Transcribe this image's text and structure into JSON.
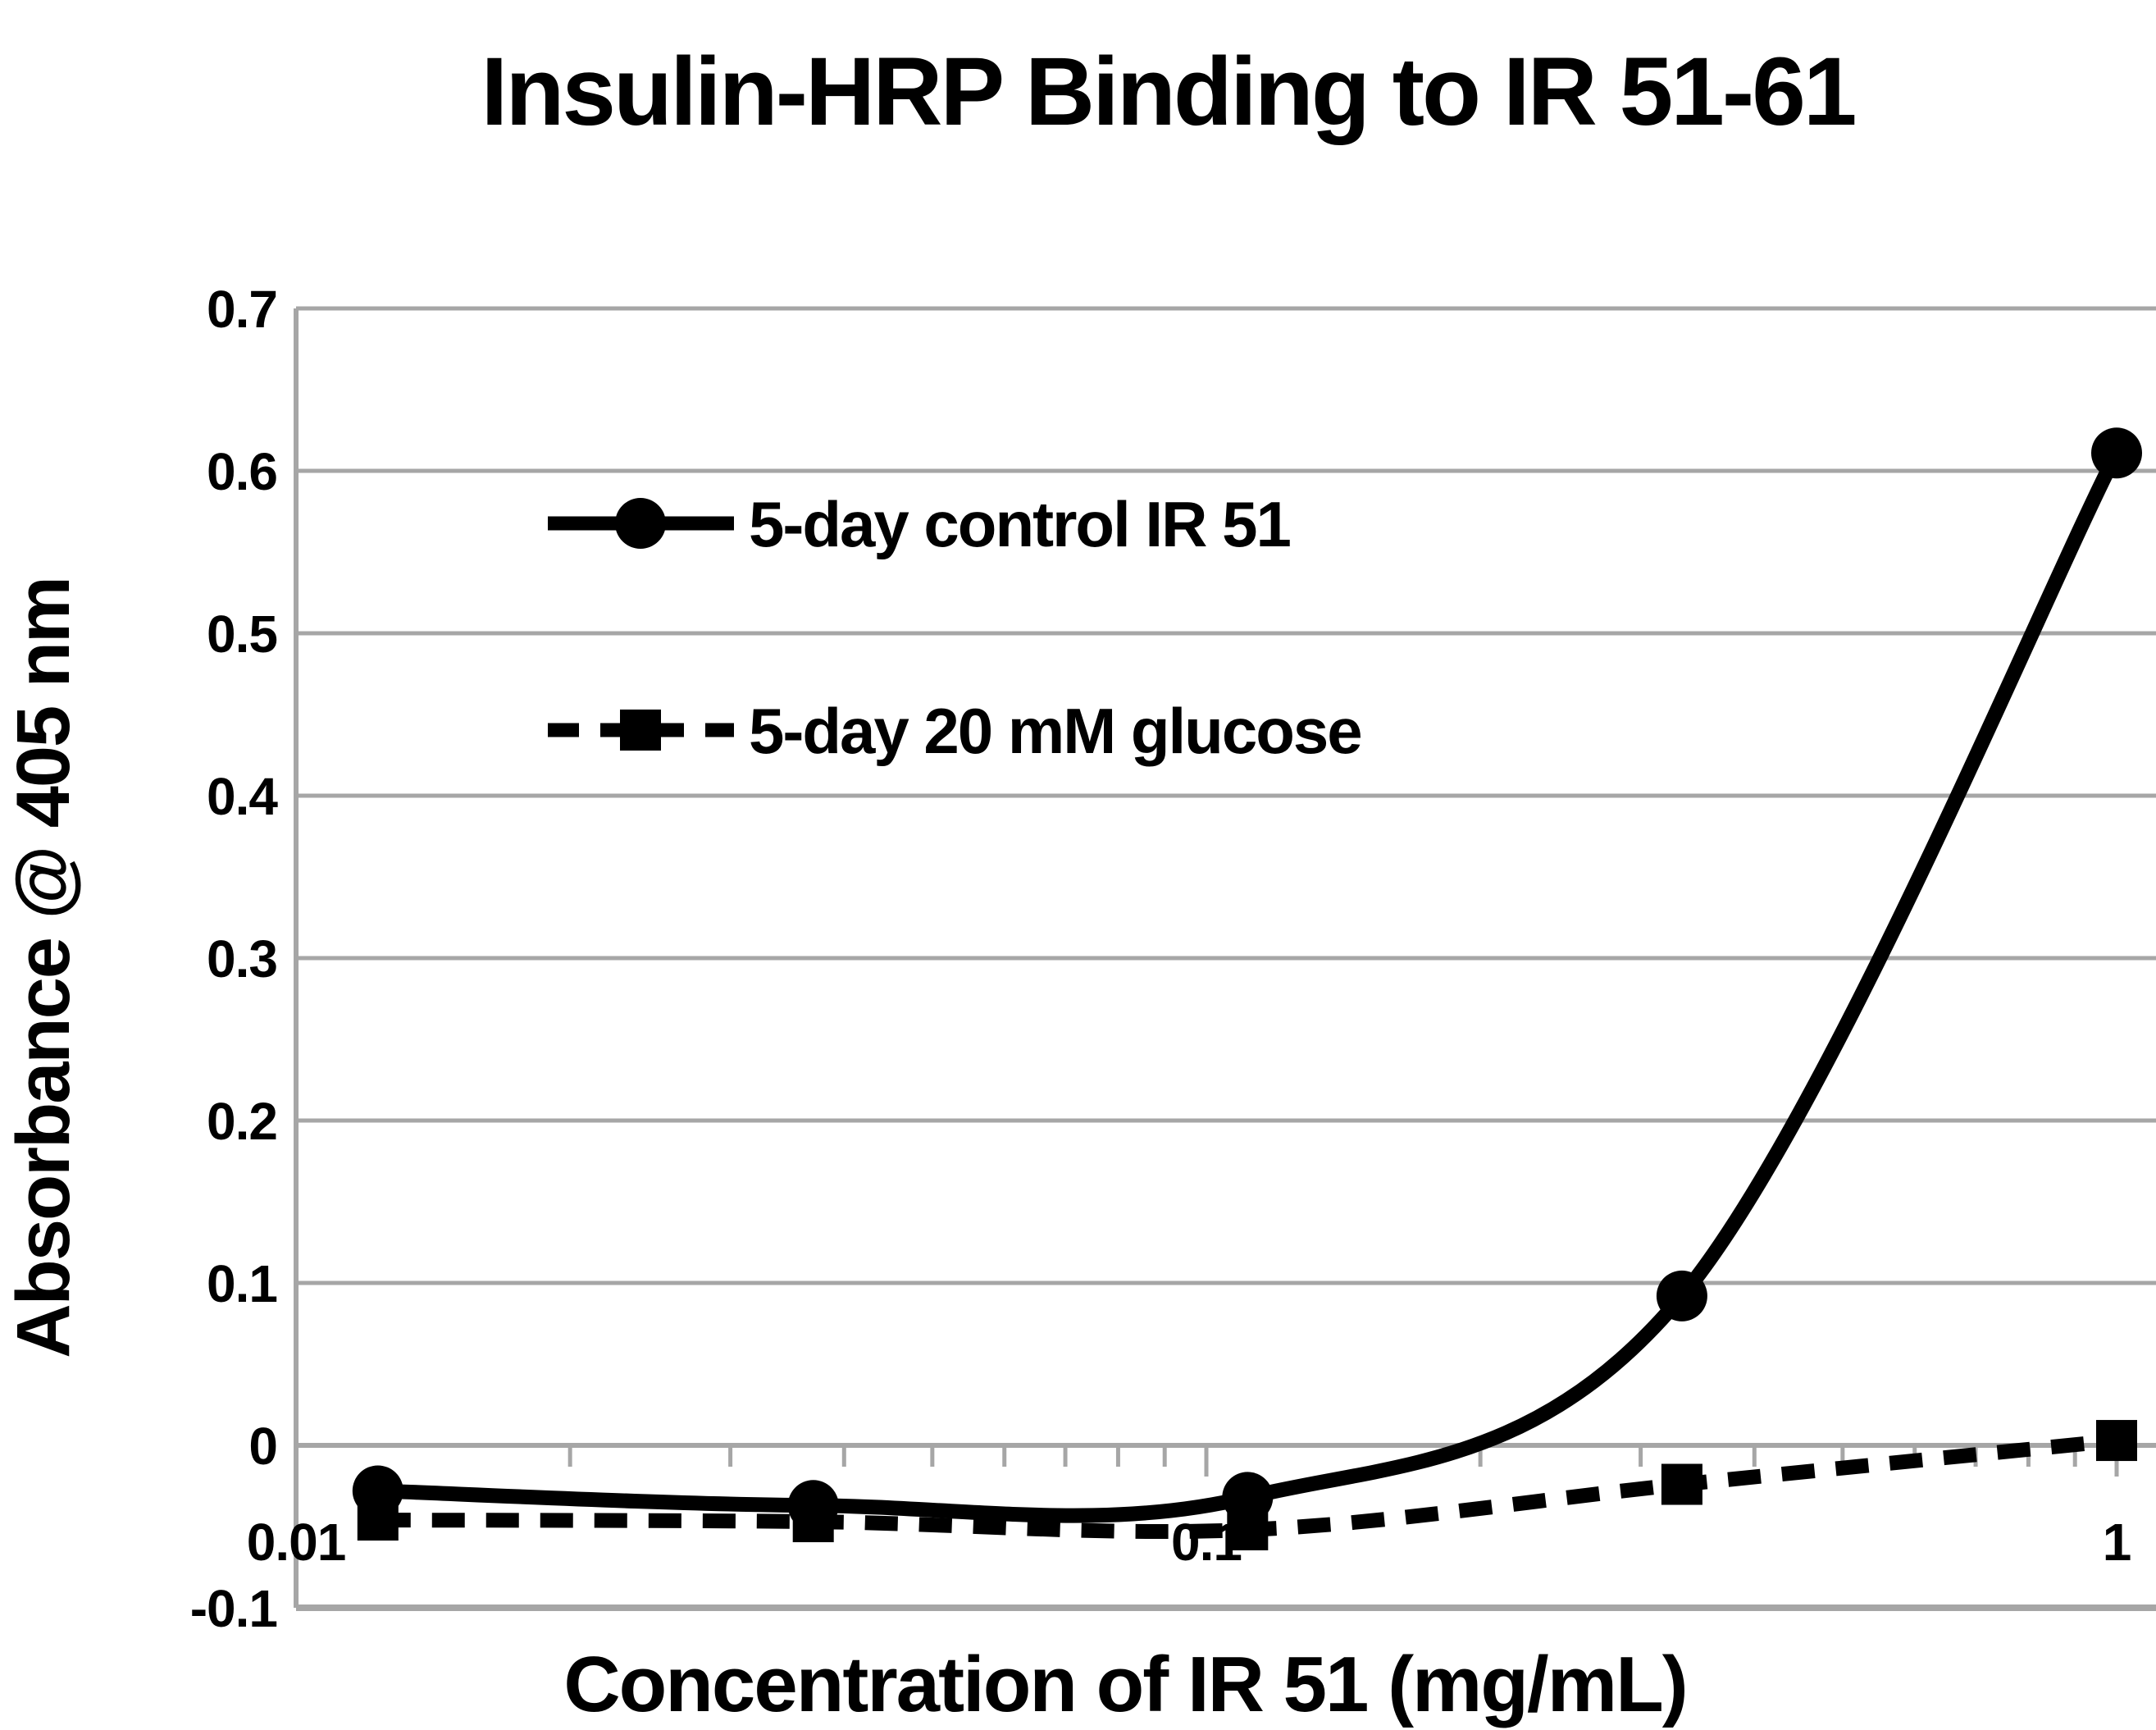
{
  "title": "Insulin-HRP Binding to IR 51-61",
  "chart_data": {
    "type": "line",
    "title": "Insulin-HRP Binding to IR 51-61",
    "xlabel": "Concentration of IR 51 (mg/mL)",
    "ylabel": "Absorbance @ 405 nm",
    "x_scale": "log",
    "xlim": [
      0.01,
      1.1
    ],
    "ylim": [
      -0.1,
      0.7
    ],
    "grid": true,
    "legend_position": "inside-top-left",
    "y_ticks": [
      0.7,
      0.6,
      0.5,
      0.4,
      0.3,
      0.2,
      0.1,
      0,
      -0.1
    ],
    "x_tick_values": [
      0.01,
      0.1,
      1
    ],
    "x_tick_labels": [
      "0.01",
      "0.1",
      "1"
    ],
    "x": [
      0.0123,
      0.037,
      0.111,
      0.333,
      1.0
    ],
    "series": [
      {
        "name": "5-day control IR 51",
        "marker": "circle",
        "line_style": "solid",
        "values": [
          -0.028,
          -0.037,
          -0.032,
          0.092,
          0.611
        ]
      },
      {
        "name": "5-day 20 mM glucose",
        "marker": "square",
        "line_style": "dashed",
        "values": [
          -0.046,
          -0.047,
          -0.052,
          -0.024,
          0.003
        ]
      }
    ],
    "colors": {
      "series": "#000000",
      "grid": "#a6a6a6",
      "text": "#000000",
      "background": "#ffffff"
    }
  }
}
